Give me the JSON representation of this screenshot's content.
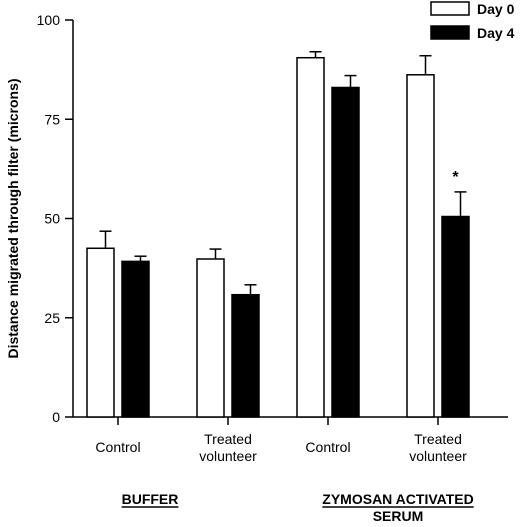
{
  "chart_data": {
    "type": "bar",
    "ylabel": "Distance migrated through filter (microns)",
    "xlabel": "",
    "ylim": [
      0,
      100
    ],
    "yticks": [
      0,
      25,
      50,
      75,
      100
    ],
    "grid": false,
    "legend_position": "top-right",
    "categories": [
      "Control",
      "Treated volunteer",
      "Control",
      "Treated volunteer"
    ],
    "category_lines": [
      [
        "Control"
      ],
      [
        "Treated",
        "volunteer"
      ],
      [
        "Control"
      ],
      [
        "Treated",
        "volunteer"
      ]
    ],
    "groups": [
      {
        "label_lines": [
          "BUFFER"
        ],
        "categories": [
          0,
          1
        ]
      },
      {
        "label_lines": [
          "ZYMOSAN ACTIVATED",
          "SERUM"
        ],
        "categories": [
          2,
          3
        ]
      }
    ],
    "series": [
      {
        "name": "Day 0",
        "color": "#ffffff",
        "values": [
          42.5,
          39.8,
          90.5,
          86.2
        ],
        "errors": [
          4.3,
          2.5,
          1.5,
          4.8
        ]
      },
      {
        "name": "Day 4",
        "color": "#000000",
        "values": [
          39.2,
          30.8,
          83.0,
          50.5
        ],
        "errors": [
          1.3,
          2.5,
          3.0,
          6.2
        ]
      }
    ],
    "annotations": [
      {
        "text": "*",
        "category": 3,
        "series": 1
      }
    ]
  }
}
